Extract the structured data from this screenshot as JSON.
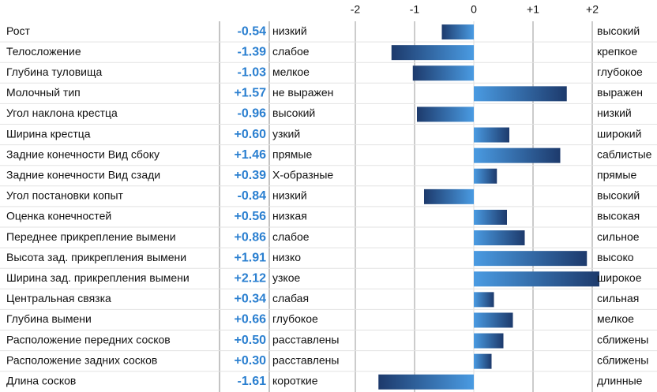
{
  "chart_data": {
    "type": "bar",
    "orientation": "horizontal",
    "categories": [
      "Рост",
      "Телосложение",
      "Глубина туловища",
      "Молочный тип",
      "Угол наклона крестца",
      "Ширина крестца",
      "Задние конечности Вид сбоку",
      "Задние конечности Вид сзади",
      "Угол постановки копыт",
      "Оценка конечностей",
      "Переднее прикрепление вымени",
      "Высота зад. прикрепления вымени",
      "Ширина зад. прикрепления вымени",
      "Центральная связка",
      "Глубина вымени",
      "Расположение передних сосков",
      "Расположение задних сосков",
      "Длина сосков"
    ],
    "values": [
      -0.54,
      -1.39,
      -1.03,
      1.57,
      -0.96,
      0.6,
      1.46,
      0.39,
      -0.84,
      0.56,
      0.86,
      1.91,
      2.12,
      0.34,
      0.66,
      0.5,
      0.3,
      -1.61
    ],
    "value_labels": [
      "-0.54",
      "-1.39",
      "-1.03",
      "+1.57",
      "-0.96",
      "+0.60",
      "+1.46",
      "+0.39",
      "-0.84",
      "+0.56",
      "+0.86",
      "+1.91",
      "+2.12",
      "+0.34",
      "+0.66",
      "+0.50",
      "+0.30",
      "-1.61"
    ],
    "low_labels": [
      "низкий",
      "слабое",
      "мелкое",
      "не выражен",
      "высокий",
      "узкий",
      "прямые",
      "Х-образные",
      "низкий",
      "низкая",
      "слабое",
      "низко",
      "узкое",
      "слабая",
      "глубокое",
      "расставлены",
      "расставлены",
      "короткие"
    ],
    "high_labels": [
      "высокий",
      "крепкое",
      "глубокое",
      "выражен",
      "низкий",
      "широкий",
      "саблистые",
      "прямые",
      "высокий",
      "высокая",
      "сильное",
      "высоко",
      "широкое",
      "сильная",
      "мелкое",
      "сближены",
      "сближены",
      "длинные"
    ],
    "xlim": [
      -2,
      2
    ],
    "xticks": [
      -2,
      -1,
      0,
      {
        "value": 1,
        "label": "+1"
      },
      {
        "value": 2,
        "label": "+2"
      }
    ],
    "colors": [
      "#4a9be2",
      "#1d3a6c"
    ],
    "value_color": "#2a7fd0",
    "grid": true
  }
}
